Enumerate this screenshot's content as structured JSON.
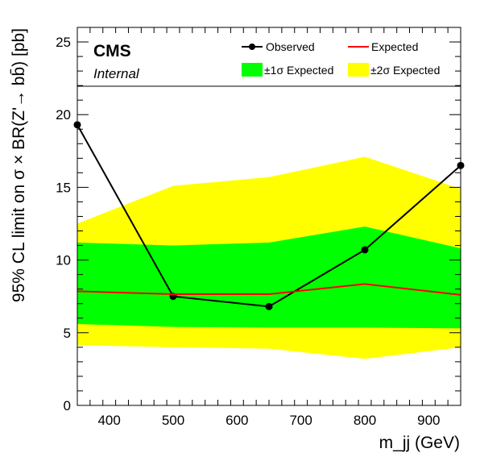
{
  "chart_data": {
    "type": "line",
    "experiment_label": "CMS",
    "status_label": "Internal",
    "xlabel": "m_jj (GeV)",
    "ylabel": "95% CL limit on σ × BR(Z'→ bb̄) [pb]",
    "xlim": [
      350,
      950
    ],
    "ylim": [
      0,
      26
    ],
    "x_ticks": [
      400,
      500,
      600,
      700,
      800,
      900
    ],
    "y_ticks": [
      0,
      5,
      10,
      15,
      20,
      25
    ],
    "grid": false,
    "legend_position": "top",
    "x": [
      350,
      500,
      650,
      800,
      950
    ],
    "series": [
      {
        "name": "Observed",
        "kind": "line-markers",
        "color": "#000000",
        "values": [
          19.3,
          7.5,
          6.8,
          10.7,
          16.5
        ]
      },
      {
        "name": "Expected",
        "kind": "line",
        "color": "#ff0000",
        "values": [
          7.85,
          7.65,
          7.65,
          8.35,
          7.6
        ]
      }
    ],
    "bands": [
      {
        "name": "±2σ Expected",
        "color": "#ffff00",
        "low": [
          4.15,
          4.0,
          3.9,
          3.2,
          4.0
        ],
        "high": [
          12.5,
          15.1,
          15.7,
          17.1,
          14.9
        ]
      },
      {
        "name": "±1σ Expected",
        "color": "#00ff00",
        "low": [
          5.6,
          5.4,
          5.35,
          5.35,
          5.3
        ],
        "high": [
          11.2,
          11.0,
          11.2,
          12.3,
          10.8
        ]
      }
    ]
  }
}
